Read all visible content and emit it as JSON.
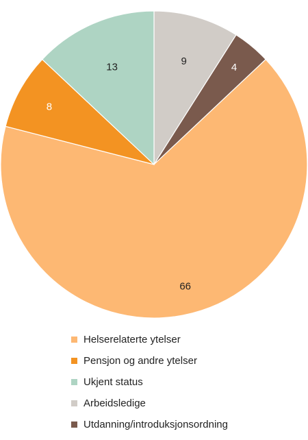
{
  "chart_data": {
    "type": "pie",
    "title": "",
    "start_angle_deg": 0,
    "direction": "clockwise",
    "legend_position": "bottom",
    "slices": [
      {
        "label": "Arbeidsledige",
        "value": 9,
        "color": "#D1CCC7"
      },
      {
        "label": "Utdanning/introduksjonsordning",
        "value": 4,
        "color": "#7A5A4D"
      },
      {
        "label": "Helserelaterte ytelser",
        "value": 66,
        "color": "#FDB873"
      },
      {
        "label": "Pensjon og andre ytelser",
        "value": 8,
        "color": "#F39322"
      },
      {
        "label": "Ukjent status",
        "value": 13,
        "color": "#AED4C3"
      }
    ],
    "legend": [
      {
        "label": "Helserelaterte ytelser",
        "color": "#FDB873"
      },
      {
        "label": "Pensjon og andre ytelser",
        "color": "#F39322"
      },
      {
        "label": "Ukjent status",
        "color": "#AED4C3"
      },
      {
        "label": "Arbeidsledige",
        "color": "#D1CCC7"
      },
      {
        "label": "Utdanning/introduksjonsordning",
        "color": "#7A5A4D"
      }
    ]
  }
}
